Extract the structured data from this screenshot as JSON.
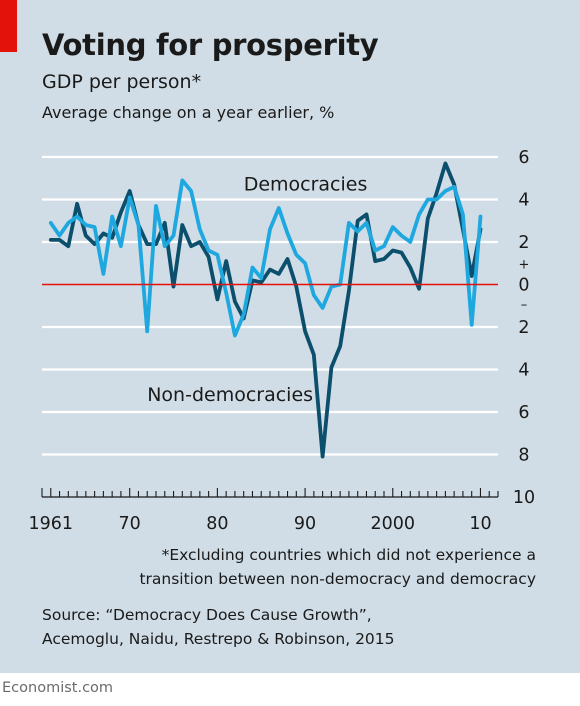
{
  "header": {
    "title": "Voting for prosperity",
    "subtitle": "GDP per person*",
    "units": "Average change on a year earlier, %"
  },
  "footnote": {
    "line1": "*Excluding countries which did not experience a",
    "line2": "transition between non-democracy and democracy"
  },
  "source": {
    "line1": "Source: “Democracy Does Cause Growth”,",
    "line2": "Acemoglu, Naidu, Restrepo & Robinson, 2015"
  },
  "brand": "Economist.com",
  "colors": {
    "background": "#d0dde6",
    "democracies": "#1fa8e0",
    "non_democracies": "#0b4f6c",
    "zero_line": "#e3120b",
    "accent": "#e3120b"
  },
  "chart_data": {
    "type": "line",
    "title": "Voting for prosperity",
    "subtitle": "GDP per person*",
    "ylabel": "Average change on a year earlier, %",
    "xlim": [
      1960,
      2012
    ],
    "ylim": [
      -10,
      6
    ],
    "y_ticks": [
      6,
      4,
      2,
      0,
      -2,
      -4,
      -6,
      -8,
      -10
    ],
    "y_tick_labels": [
      "6",
      "4",
      "2",
      "0",
      "2",
      "4",
      "6",
      "8",
      "10"
    ],
    "y_sign_labels": [
      "+",
      "–"
    ],
    "x_tick_labels": [
      {
        "x": 1961,
        "label": "1961"
      },
      {
        "x": 1970,
        "label": "70"
      },
      {
        "x": 1980,
        "label": "80"
      },
      {
        "x": 1990,
        "label": "90"
      },
      {
        "x": 2000,
        "label": "2000"
      },
      {
        "x": 2010,
        "label": "10"
      }
    ],
    "grid": true,
    "series": [
      {
        "name": "Democracies",
        "color": "#1fa8e0",
        "x": [
          1961,
          1962,
          1963,
          1964,
          1965,
          1966,
          1967,
          1968,
          1969,
          1970,
          1971,
          1972,
          1973,
          1974,
          1975,
          1976,
          1977,
          1978,
          1979,
          1980,
          1981,
          1982,
          1983,
          1984,
          1985,
          1986,
          1987,
          1988,
          1989,
          1990,
          1991,
          1992,
          1993,
          1994,
          1995,
          1996,
          1997,
          1998,
          1999,
          2000,
          2001,
          2002,
          2003,
          2004,
          2005,
          2006,
          2007,
          2008,
          2009,
          2010
        ],
        "y": [
          2.9,
          2.3,
          2.9,
          3.2,
          2.8,
          2.7,
          0.5,
          3.2,
          1.8,
          4.1,
          2.8,
          -2.2,
          3.7,
          1.8,
          2.3,
          4.9,
          4.4,
          2.6,
          1.6,
          1.4,
          -0.4,
          -2.4,
          -1.4,
          0.8,
          0.3,
          2.6,
          3.6,
          2.4,
          1.4,
          1.0,
          -0.5,
          -1.1,
          -0.1,
          0.0,
          2.9,
          2.5,
          2.9,
          1.6,
          1.8,
          2.7,
          2.3,
          2.0,
          3.3,
          4.0,
          4.0,
          4.4,
          4.6,
          3.3,
          -1.9,
          3.2
        ]
      },
      {
        "name": "Non-democracies",
        "color": "#0b4f6c",
        "x": [
          1961,
          1962,
          1963,
          1964,
          1965,
          1966,
          1967,
          1968,
          1969,
          1970,
          1971,
          1972,
          1973,
          1974,
          1975,
          1976,
          1977,
          1978,
          1979,
          1980,
          1981,
          1982,
          1983,
          1984,
          1985,
          1986,
          1987,
          1988,
          1989,
          1990,
          1991,
          1992,
          1993,
          1994,
          1995,
          1996,
          1997,
          1998,
          1999,
          2000,
          2001,
          2002,
          2003,
          2004,
          2005,
          2006,
          2007,
          2008,
          2009,
          2010
        ],
        "y": [
          2.1,
          2.1,
          1.8,
          3.8,
          2.3,
          1.9,
          2.4,
          2.2,
          3.4,
          4.4,
          2.8,
          1.9,
          1.9,
          2.9,
          -0.1,
          2.8,
          1.8,
          2.0,
          1.3,
          -0.7,
          1.1,
          -0.8,
          -1.6,
          0.2,
          0.1,
          0.7,
          0.5,
          1.2,
          -0.1,
          -2.2,
          -3.3,
          -8.1,
          -3.9,
          -2.9,
          -0.3,
          3.0,
          3.3,
          1.1,
          1.2,
          1.6,
          1.5,
          0.8,
          -0.2,
          3.1,
          4.3,
          5.7,
          4.7,
          2.6,
          0.4,
          2.6
        ]
      }
    ],
    "annotations": [
      {
        "text": "Democracies",
        "x": 1983,
        "y": 4.7
      },
      {
        "text": "Non-democracies",
        "x": 1972,
        "y": -5.2
      }
    ]
  }
}
